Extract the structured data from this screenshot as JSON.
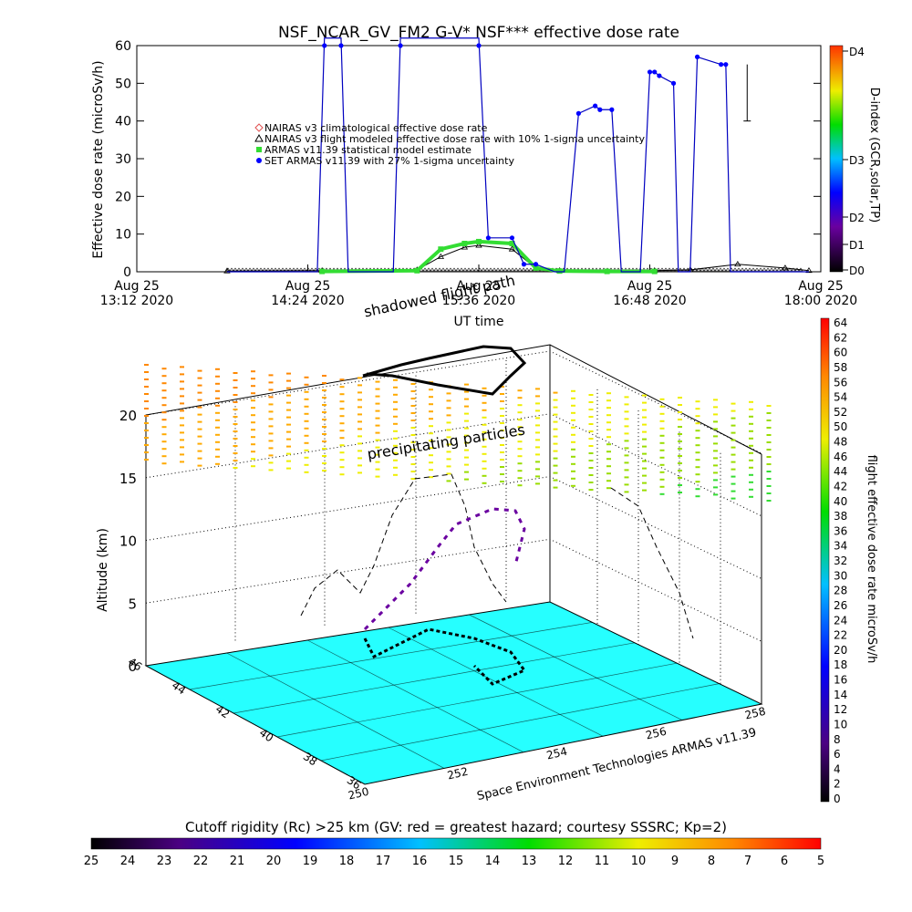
{
  "title": "NSF_NCAR_GV_FM2 G-V* NSF*** effective dose rate",
  "legend": [
    {
      "label": "NAIRAS v3 climatological effective dose rate",
      "color": "#e05050",
      "symbol": "diamond"
    },
    {
      "label": "NAIRAS v3 flight modeled effective dose rate with 10% 1-sigma uncertainty",
      "color": "#000000",
      "symbol": "triangle"
    },
    {
      "label": "ARMAS v11.39 statistical model estimate",
      "color": "#33dd33",
      "symbol": "square"
    },
    {
      "label": "SET ARMAS v11.39 with 27% 1-sigma uncertainty",
      "color": "#0000ff",
      "symbol": "circle"
    }
  ],
  "annotations": {
    "shadowed": "shadowed flight path",
    "precipitating": "precipitating particles",
    "credit": "Space Environment Technologies ARMAS v11.39",
    "cutoff_title": "Cutoff rigidity (Rc) >25 km (GV: red = greatest hazard; courtesy SSSRC; Kp=2)"
  },
  "chart_data": [
    {
      "type": "line",
      "title": "NSF_NCAR_GV_FM2 G-V* NSF*** effective dose rate",
      "xlabel": "UT time",
      "ylabel": "Effective dose rate (microSv/h)",
      "ylim": [
        0,
        60
      ],
      "yticks": [
        0,
        10,
        20,
        30,
        40,
        50,
        60
      ],
      "x_tick_labels": [
        {
          "date": "Aug 25",
          "time": "13:12 2020"
        },
        {
          "date": "Aug 25",
          "time": "14:24 2020"
        },
        {
          "date": "Aug 25",
          "time": "15:36 2020"
        },
        {
          "date": "Aug 25",
          "time": "16:48 2020"
        },
        {
          "date": "Aug 25",
          "time": "18:00 2020"
        }
      ],
      "x_range": [
        "13:12",
        "18:00"
      ],
      "series": [
        {
          "name": "NAIRAS v3 flight modeled effective dose rate with 10% 1-sigma uncertainty",
          "x": [
            "13:50",
            "14:30",
            "15:10",
            "15:20",
            "15:30",
            "15:36",
            "15:50",
            "16:00",
            "16:10",
            "16:50",
            "17:05",
            "17:25",
            "17:45",
            "17:55"
          ],
          "values": [
            0.2,
            0.3,
            0.5,
            4,
            6.5,
            7,
            6,
            1,
            0.3,
            0.3,
            0.5,
            2,
            1,
            0.3
          ]
        },
        {
          "name": "ARMAS v11.39 statistical model estimate",
          "x": [
            "14:30",
            "15:10",
            "15:20",
            "15:30",
            "15:36",
            "15:50",
            "16:00",
            "16:10",
            "16:30",
            "16:50"
          ],
          "values": [
            0.1,
            0.3,
            6,
            7.5,
            8,
            7.5,
            1,
            0.2,
            0.1,
            0.1
          ]
        },
        {
          "name": "SET ARMAS v11.39 with 27% 1-sigma uncertainty",
          "x": [
            "13:50",
            "14:28",
            "14:31",
            "14:38",
            "14:41",
            "15:00",
            "15:03",
            "15:36",
            "15:40",
            "15:50",
            "15:55",
            "16:00",
            "16:08",
            "16:12",
            "16:18",
            "16:25",
            "16:27",
            "16:32",
            "16:36",
            "16:44",
            "16:48",
            "16:50",
            "16:52",
            "16:58",
            "17:00",
            "17:05",
            "17:08",
            "17:18",
            "17:20",
            "17:22",
            "17:26",
            "17:30",
            "17:34",
            "17:40",
            "17:55"
          ],
          "values": [
            0,
            0,
            62,
            62,
            0,
            0,
            62,
            62,
            9,
            9,
            2,
            2,
            0,
            0,
            42,
            44,
            43,
            43,
            0,
            0,
            53,
            53,
            52,
            50,
            0,
            0,
            57,
            55,
            55,
            0,
            0,
            0,
            0,
            0,
            0
          ]
        }
      ]
    },
    {
      "type": "scatter",
      "subtype": "3d-trajectory",
      "zlabel": "Altitude (km)",
      "zlim": [
        0,
        22
      ],
      "zticks": [
        0,
        5,
        10,
        15,
        20
      ],
      "lon_ticks": [
        250,
        252,
        254,
        256,
        258
      ],
      "lat_ticks": [
        36,
        38,
        40,
        42,
        44,
        46
      ]
    },
    {
      "type": "heatmap",
      "colorbar": "right",
      "label": "flight effective dose rate microSv/h",
      "ticks": [
        0,
        2,
        4,
        6,
        8,
        10,
        12,
        14,
        16,
        18,
        20,
        22,
        24,
        26,
        28,
        30,
        32,
        34,
        36,
        38,
        40,
        42,
        44,
        46,
        48,
        50,
        52,
        54,
        56,
        58,
        60,
        62,
        64
      ]
    },
    {
      "type": "heatmap",
      "colorbar": "bottom",
      "label": "Cutoff rigidity (Rc) >25 km (GV: red = greatest hazard; courtesy SSSRC; Kp=2)",
      "ticks": [
        25,
        24,
        23,
        22,
        21,
        20,
        19,
        18,
        17,
        16,
        15,
        14,
        13,
        12,
        11,
        10,
        9,
        8,
        7,
        6,
        5
      ]
    },
    {
      "type": "heatmap",
      "colorbar": "right-top",
      "label": "D-index (GCR,solar,TP)",
      "ticks": [
        "D0",
        "D1",
        "D2",
        "D3",
        "D4"
      ]
    }
  ]
}
